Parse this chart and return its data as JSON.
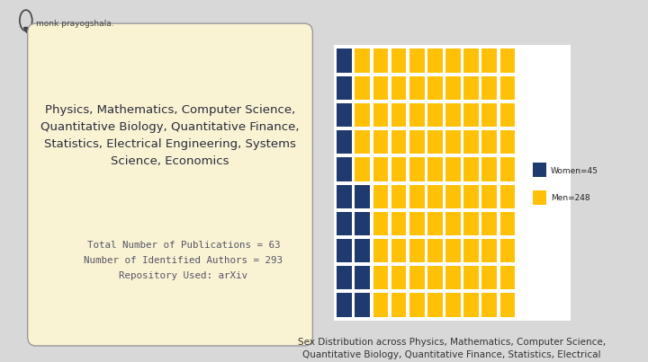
{
  "bg_color": "#d8d8d8",
  "card_bg_color": "#faf3d3",
  "card_border_color": "#999999",
  "title_text": "Physics, Mathematics, Computer Science,\nQuantitative Biology, Quantitative Finance,\nStatistics, Electrical Engineering, Systems\nScience, Economics",
  "stats_text": "Total Number of Publications = 63\nNumber of Identified Authors = 293\nRepository Used: arXiv",
  "women_count": 45,
  "men_count": 248,
  "total": 293,
  "waffle_rows": 10,
  "waffle_cols": 10,
  "blue_color": "#1e3a6e",
  "yellow_color": "#ffc107",
  "waffle_bg": "#ffffff",
  "caption": "Sex Distribution across Physics, Mathematics, Computer Science,\nQuantitative Biology, Quantitative Finance, Statistics, Electrical\nEngineering, Systems Science, and Economics",
  "logo_text": "monk prayogshala.",
  "logo_color": "#444444",
  "title_fontsize": 9.5,
  "stats_fontsize": 7.8,
  "caption_fontsize": 7.5,
  "legend_label_women": "Women=45",
  "legend_label_men": "Men=248"
}
